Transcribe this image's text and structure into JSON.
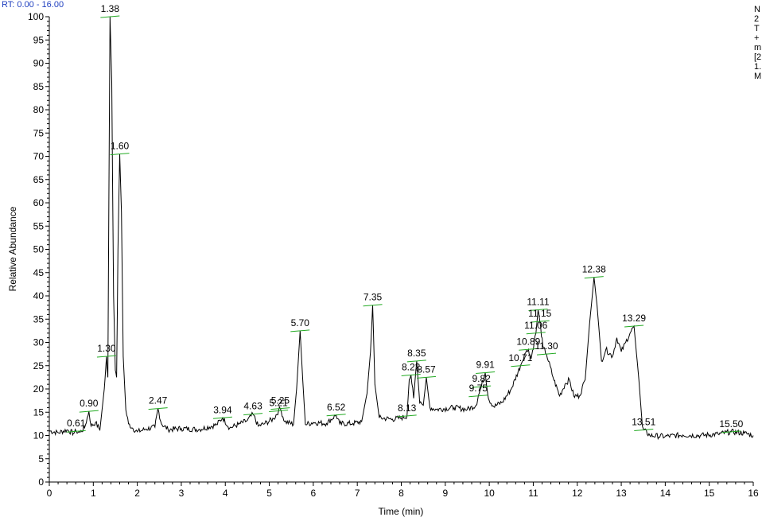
{
  "chart_data": {
    "type": "line",
    "xlabel": "Time (min)",
    "ylabel": "Relative Abundance",
    "xlim": [
      0,
      16
    ],
    "ylim": [
      0,
      100
    ],
    "x_ticks": [
      0,
      1,
      2,
      3,
      4,
      5,
      6,
      7,
      8,
      9,
      10,
      11,
      12,
      13,
      14,
      15,
      16
    ],
    "y_ticks": [
      0,
      5,
      10,
      15,
      20,
      25,
      30,
      35,
      40,
      45,
      50,
      55,
      60,
      65,
      70,
      75,
      80,
      85,
      90,
      95,
      100
    ],
    "rt_range_text": "RT: 0.00 - 16.00",
    "header_lines": [
      "N",
      "2",
      "T",
      "+",
      "m",
      "[2",
      "1.",
      "M"
    ],
    "series_points": [
      [
        0.0,
        11.0
      ],
      [
        0.2,
        10.6
      ],
      [
        0.4,
        11.2
      ],
      [
        0.55,
        10.5
      ],
      [
        0.61,
        10.9
      ],
      [
        0.7,
        10.7
      ],
      [
        0.8,
        11.6
      ],
      [
        0.9,
        15.2
      ],
      [
        0.95,
        12.0
      ],
      [
        1.05,
        12.8
      ],
      [
        1.15,
        11.2
      ],
      [
        1.25,
        20.0
      ],
      [
        1.3,
        27.0
      ],
      [
        1.33,
        22.5
      ],
      [
        1.38,
        100.0
      ],
      [
        1.42,
        86.0
      ],
      [
        1.46,
        40.0
      ],
      [
        1.5,
        24.0
      ],
      [
        1.53,
        22.5
      ],
      [
        1.56,
        50.0
      ],
      [
        1.6,
        70.5
      ],
      [
        1.64,
        58.0
      ],
      [
        1.68,
        27.0
      ],
      [
        1.74,
        15.5
      ],
      [
        1.8,
        12.5
      ],
      [
        1.9,
        11.5
      ],
      [
        2.0,
        10.8
      ],
      [
        2.2,
        11.4
      ],
      [
        2.4,
        11.8
      ],
      [
        2.47,
        15.8
      ],
      [
        2.55,
        12.5
      ],
      [
        2.7,
        11.3
      ],
      [
        3.0,
        11.5
      ],
      [
        3.4,
        11.3
      ],
      [
        3.8,
        12.3
      ],
      [
        3.94,
        13.8
      ],
      [
        4.1,
        11.6
      ],
      [
        4.3,
        12.4
      ],
      [
        4.5,
        13.2
      ],
      [
        4.63,
        14.6
      ],
      [
        4.75,
        12.0
      ],
      [
        4.9,
        12.6
      ],
      [
        5.1,
        13.6
      ],
      [
        5.21,
        15.3
      ],
      [
        5.25,
        15.8
      ],
      [
        5.35,
        13.0
      ],
      [
        5.55,
        12.4
      ],
      [
        5.62,
        20.0
      ],
      [
        5.7,
        32.5
      ],
      [
        5.76,
        22.0
      ],
      [
        5.82,
        12.4
      ],
      [
        6.0,
        12.8
      ],
      [
        6.3,
        12.6
      ],
      [
        6.52,
        14.4
      ],
      [
        6.6,
        12.5
      ],
      [
        6.9,
        12.6
      ],
      [
        7.1,
        13.0
      ],
      [
        7.22,
        19.0
      ],
      [
        7.3,
        28.0
      ],
      [
        7.35,
        38.0
      ],
      [
        7.4,
        21.0
      ],
      [
        7.5,
        13.8
      ],
      [
        7.8,
        13.5
      ],
      [
        8.0,
        13.8
      ],
      [
        8.13,
        14.2
      ],
      [
        8.18,
        22.0
      ],
      [
        8.22,
        23.0
      ],
      [
        8.28,
        18.0
      ],
      [
        8.35,
        26.0
      ],
      [
        8.42,
        17.0
      ],
      [
        8.5,
        16.5
      ],
      [
        8.57,
        22.5
      ],
      [
        8.65,
        16.0
      ],
      [
        8.8,
        15.6
      ],
      [
        9.2,
        16.0
      ],
      [
        9.5,
        15.6
      ],
      [
        9.7,
        16.5
      ],
      [
        9.75,
        18.5
      ],
      [
        9.82,
        20.5
      ],
      [
        9.91,
        23.5
      ],
      [
        9.98,
        18.0
      ],
      [
        10.1,
        16.2
      ],
      [
        10.3,
        17.2
      ],
      [
        10.5,
        20.0
      ],
      [
        10.71,
        25.0
      ],
      [
        10.8,
        27.5
      ],
      [
        10.89,
        28.5
      ],
      [
        10.95,
        26.5
      ],
      [
        11.02,
        30.0
      ],
      [
        11.06,
        32.0
      ],
      [
        11.11,
        37.0
      ],
      [
        11.15,
        34.5
      ],
      [
        11.22,
        29.0
      ],
      [
        11.3,
        27.5
      ],
      [
        11.45,
        22.5
      ],
      [
        11.6,
        18.5
      ],
      [
        11.72,
        21.0
      ],
      [
        11.82,
        22.0
      ],
      [
        11.92,
        18.5
      ],
      [
        12.05,
        18.5
      ],
      [
        12.18,
        22.0
      ],
      [
        12.28,
        34.0
      ],
      [
        12.38,
        44.0
      ],
      [
        12.45,
        38.0
      ],
      [
        12.55,
        26.0
      ],
      [
        12.65,
        28.5
      ],
      [
        12.8,
        27.0
      ],
      [
        12.9,
        31.0
      ],
      [
        13.0,
        28.0
      ],
      [
        13.1,
        30.0
      ],
      [
        13.2,
        32.0
      ],
      [
        13.29,
        33.5
      ],
      [
        13.4,
        22.0
      ],
      [
        13.48,
        12.0
      ],
      [
        13.51,
        11.2
      ],
      [
        13.65,
        10.0
      ],
      [
        14.0,
        9.8
      ],
      [
        14.4,
        10.1
      ],
      [
        14.8,
        10.0
      ],
      [
        15.2,
        10.3
      ],
      [
        15.5,
        10.8
      ],
      [
        15.8,
        10.5
      ],
      [
        16.0,
        10.0
      ]
    ],
    "peak_labels": [
      {
        "text": "0.61",
        "x": 0.61,
        "y": 10.9
      },
      {
        "text": "0.90",
        "x": 0.9,
        "y": 15.2
      },
      {
        "text": "1.30",
        "x": 1.3,
        "y": 27.0
      },
      {
        "text": "1.38",
        "x": 1.38,
        "y": 100.0
      },
      {
        "text": "1.60",
        "x": 1.6,
        "y": 70.5
      },
      {
        "text": "2.47",
        "x": 2.47,
        "y": 15.8
      },
      {
        "text": "3.94",
        "x": 3.94,
        "y": 13.8
      },
      {
        "text": "4.63",
        "x": 4.63,
        "y": 14.6
      },
      {
        "text": "5.21",
        "x": 5.21,
        "y": 15.3
      },
      {
        "text": "5.25",
        "x": 5.25,
        "y": 15.8
      },
      {
        "text": "5.70",
        "x": 5.7,
        "y": 32.5
      },
      {
        "text": "6.52",
        "x": 6.52,
        "y": 14.4
      },
      {
        "text": "7.35",
        "x": 7.35,
        "y": 38.0
      },
      {
        "text": "8.13",
        "x": 8.13,
        "y": 14.2
      },
      {
        "text": "8.22",
        "x": 8.22,
        "y": 23.0
      },
      {
        "text": "8.35",
        "x": 8.35,
        "y": 26.0
      },
      {
        "text": "8.57",
        "x": 8.57,
        "y": 22.5
      },
      {
        "text": "9.75",
        "x": 9.75,
        "y": 18.5
      },
      {
        "text": "9.82",
        "x": 9.82,
        "y": 20.5
      },
      {
        "text": "9.91",
        "x": 9.91,
        "y": 23.5
      },
      {
        "text": "10.71",
        "x": 10.71,
        "y": 25.0
      },
      {
        "text": "10.89",
        "x": 10.89,
        "y": 28.5
      },
      {
        "text": "11.06",
        "x": 11.06,
        "y": 32.0
      },
      {
        "text": "11.11",
        "x": 11.11,
        "y": 37.0
      },
      {
        "text": "11.15",
        "x": 11.15,
        "y": 34.5
      },
      {
        "text": "11.30",
        "x": 11.3,
        "y": 27.5
      },
      {
        "text": "12.38",
        "x": 12.38,
        "y": 44.0
      },
      {
        "text": "13.29",
        "x": 13.29,
        "y": 33.5
      },
      {
        "text": "13.51",
        "x": 13.51,
        "y": 11.2
      },
      {
        "text": "15.50",
        "x": 15.5,
        "y": 10.8
      }
    ],
    "colors": {
      "trace": "#000000",
      "label_marker": "#22aa22",
      "rt_range": "#1f3fbf"
    }
  }
}
